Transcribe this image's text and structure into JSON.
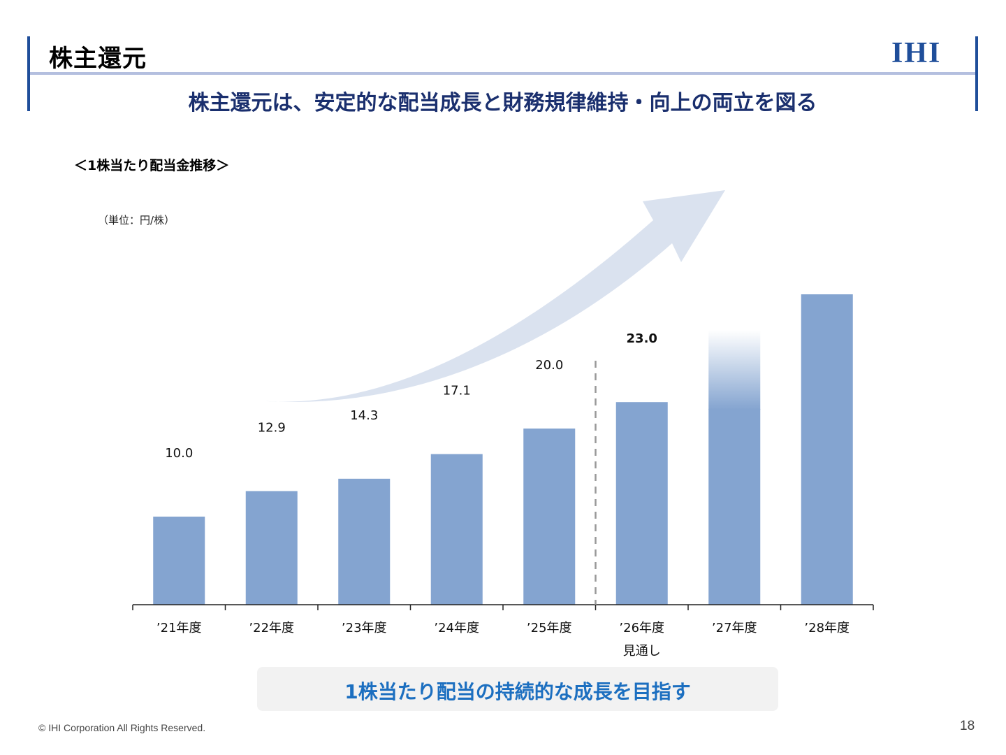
{
  "header": {
    "title": "株主還元",
    "logo": "IHI",
    "headline": "株主還元は、安定的な配当成長と財務規律維持・向上の両立を図る",
    "accent_color": "#1f4e9a"
  },
  "section": {
    "label": "＜1株当たり配当金推移＞",
    "unit": "（単位：円/株）"
  },
  "chart_data": {
    "type": "bar",
    "categories": [
      "’21年度",
      "’22年度",
      "’23年度",
      "’24年度",
      "’25年度",
      "’26年度",
      "’27年度",
      "’28年度"
    ],
    "category_sublabels": [
      "",
      "",
      "",
      "",
      "",
      "見通し",
      "",
      ""
    ],
    "values": [
      10.0,
      12.9,
      14.3,
      17.1,
      20.0,
      23.0,
      null,
      null
    ],
    "value_labels": [
      "10.0",
      "12.9",
      "14.3",
      "17.1",
      "20.0",
      "23.0",
      "",
      ""
    ],
    "highlight_label_index": 5,
    "forecast_divider_after_index": 4,
    "illustrative_bars": [
      {
        "index": 6,
        "style": "gradient-fade"
      },
      {
        "index": 7,
        "style": "solid"
      }
    ],
    "bar_color": "#84a4d0",
    "trend_arrow": "upward",
    "title": "",
    "xlabel": "",
    "ylabel": ""
  },
  "callout": {
    "text": "1株当たり配当の持続的な成長を目指す",
    "color": "#1c6fc0"
  },
  "footer": {
    "copyright": "© IHI Corporation All Rights Reserved.",
    "page_number": "18"
  }
}
